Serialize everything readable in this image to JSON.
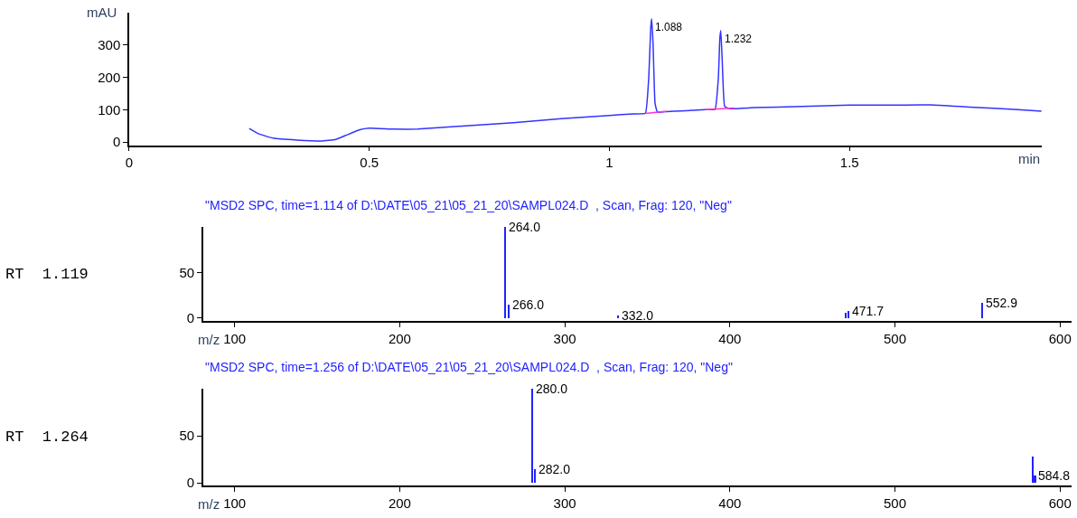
{
  "chart_data": [
    {
      "type": "line",
      "xlabel": "min",
      "ylabel": "mAU",
      "xlim": [
        0,
        1.9
      ],
      "ylim": [
        -10,
        400
      ],
      "xticks": [
        0,
        0.5,
        1,
        1.5
      ],
      "yticks": [
        0,
        100,
        200,
        300
      ],
      "series": [
        {
          "color": "#3333ff",
          "x": [
            0.25,
            0.27,
            0.3,
            0.35,
            0.4,
            0.43,
            0.45,
            0.48,
            0.5,
            0.55,
            0.6,
            0.7,
            0.8,
            0.9,
            1.0,
            1.05,
            1.075,
            1.082,
            1.086,
            1.088,
            1.091,
            1.095,
            1.1,
            1.12,
            1.15,
            1.2,
            1.22,
            1.227,
            1.23,
            1.232,
            1.235,
            1.24,
            1.25,
            1.3,
            1.4,
            1.5,
            1.6,
            1.67,
            1.75,
            1.85,
            1.9
          ],
          "values": [
            42,
            25,
            12,
            6,
            3,
            8,
            20,
            38,
            43,
            40,
            40,
            50,
            60,
            72,
            82,
            87,
            89,
            200,
            350,
            380,
            300,
            120,
            92,
            94,
            96,
            100,
            101,
            200,
            320,
            344,
            250,
            110,
            103,
            106,
            110,
            114,
            114,
            115,
            108,
            100,
            95
          ]
        },
        {
          "color": "#ff33cc",
          "x": [
            1.075,
            1.12
          ],
          "values": [
            88,
            95
          ]
        },
        {
          "color": "#ff33cc",
          "x": [
            1.2,
            1.26
          ],
          "values": [
            100,
            105
          ]
        }
      ],
      "annotations": [
        {
          "text": "1.088",
          "x": 1.088,
          "y": 380
        },
        {
          "text": "1.232",
          "x": 1.232,
          "y": 344
        }
      ]
    },
    {
      "type": "bar",
      "title": "\"MSD2 SPC, time=1.114 of D:\\DATE\\05_21\\05_21_20\\SAMPL024.D  , Scan, Frag: 120, \"Neg\"",
      "xlabel": "m/z",
      "xlim": [
        81,
        607
      ],
      "ylim": [
        -3,
        100
      ],
      "xticks": [
        100,
        200,
        300,
        400,
        500,
        600
      ],
      "yticks": [
        0,
        50
      ],
      "series": [
        {
          "color": "#2222ff",
          "x": [
            264.0,
            266.0,
            332.0,
            470,
            471.7,
            552.9
          ],
          "values": [
            100,
            15,
            3,
            6,
            8,
            17
          ]
        }
      ],
      "annotations": [
        "RT  1.119",
        {
          "text": "264.0",
          "x": 264.0,
          "y": 100
        },
        {
          "text": "266.0",
          "x": 266.0,
          "y": 15
        },
        {
          "text": "332.0",
          "x": 332.0,
          "y": 3
        },
        {
          "text": "471.7",
          "x": 471.7,
          "y": 8
        },
        {
          "text": "552.9",
          "x": 552.9,
          "y": 17
        }
      ]
    },
    {
      "type": "bar",
      "title": "\"MSD2 SPC, time=1.256 of D:\\DATE\\05_21\\05_21_20\\SAMPL024.D  , Scan, Frag: 120, \"Neg\"",
      "xlabel": "m/z",
      "xlim": [
        81,
        607
      ],
      "ylim": [
        -3,
        100
      ],
      "xticks": [
        100,
        200,
        300,
        400,
        500,
        600
      ],
      "yticks": [
        0,
        50
      ],
      "series": [
        {
          "color": "#2222ff",
          "x": [
            280.0,
            282.0,
            583.5,
            584.8
          ],
          "values": [
            100,
            15,
            28,
            8
          ]
        }
      ],
      "annotations": [
        "RT  1.264",
        {
          "text": "280.0",
          "x": 280.0,
          "y": 100
        },
        {
          "text": "282.0",
          "x": 282.0,
          "y": 15
        },
        {
          "text": "584.8",
          "x": 584.8,
          "y": 8
        }
      ]
    }
  ]
}
